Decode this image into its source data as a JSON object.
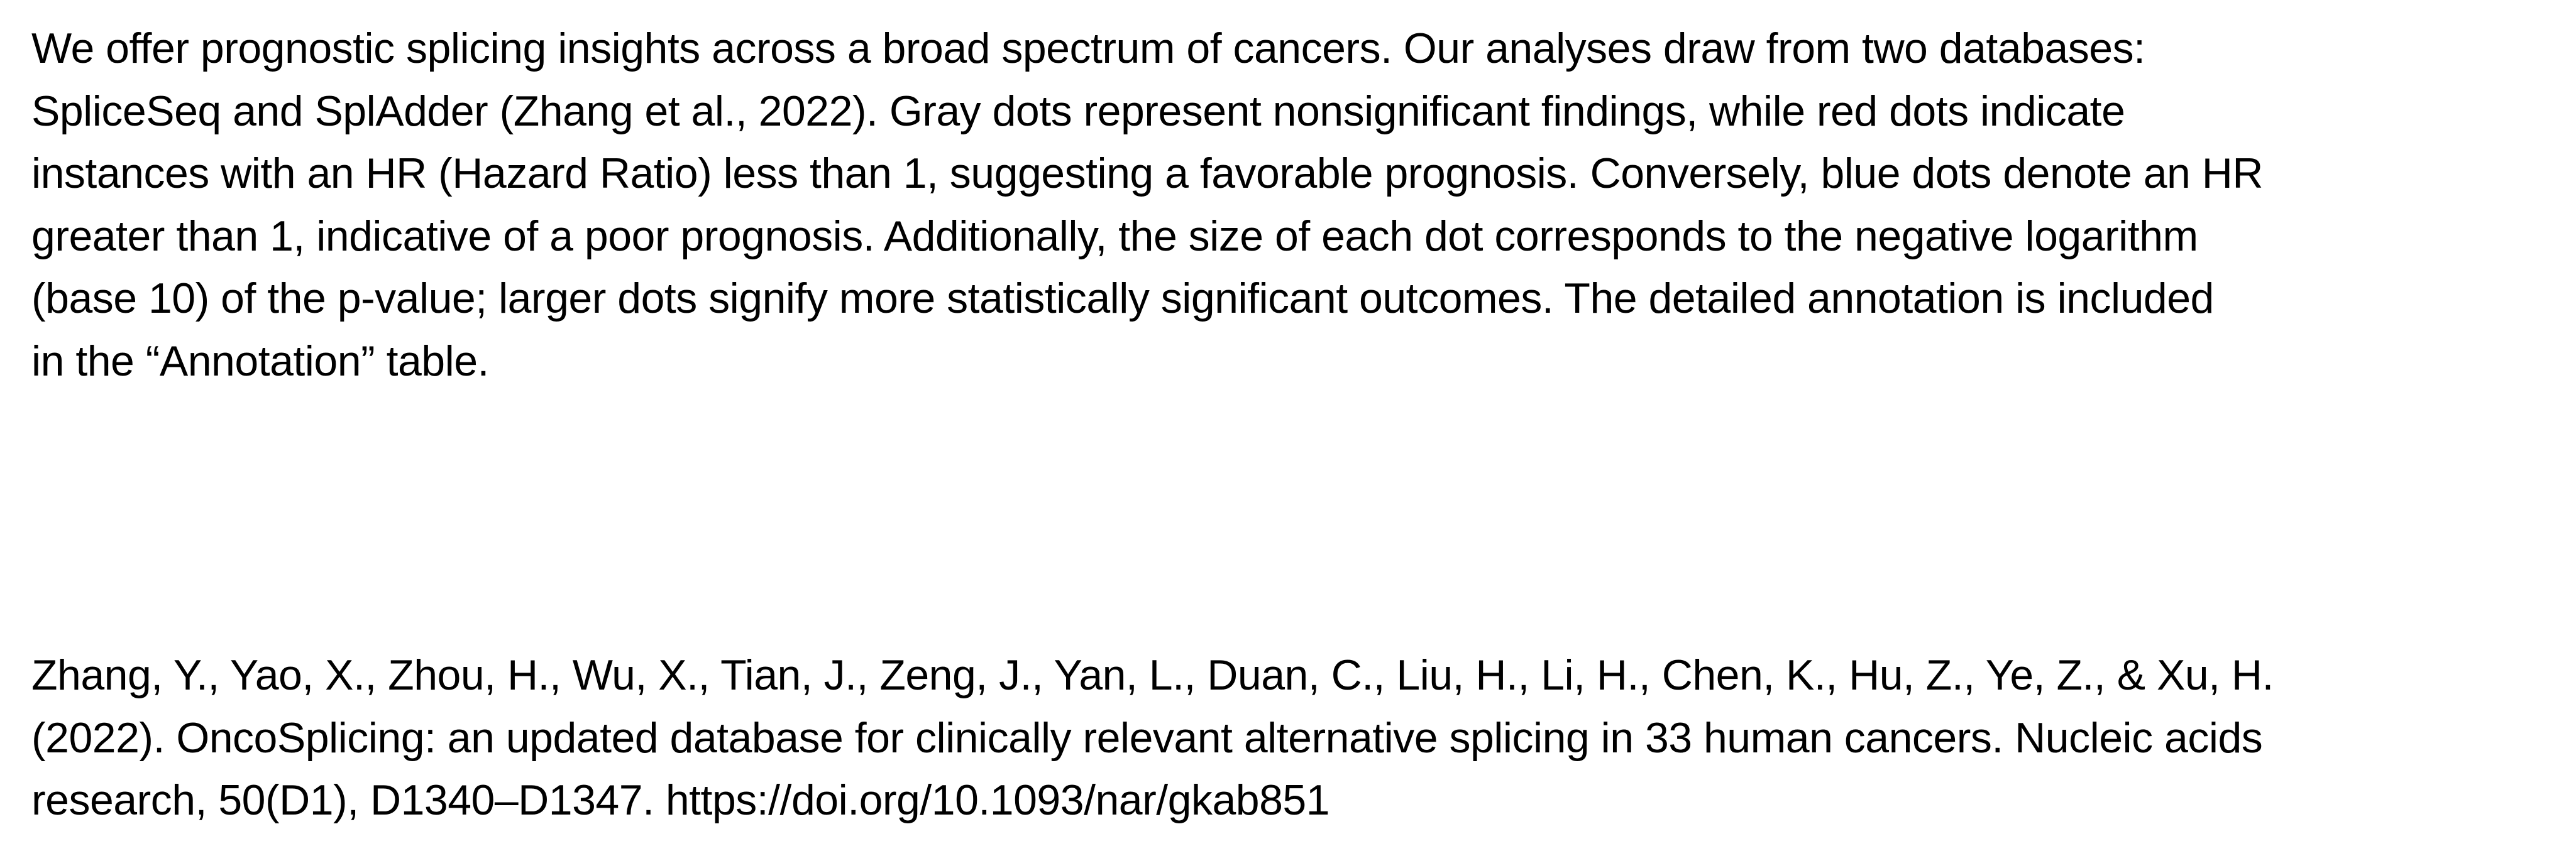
{
  "description": {
    "lines": [
      "We offer prognostic splicing insights across a broad spectrum of cancers. Our analyses draw from two databases:",
      "SpliceSeq and SplAdder (Zhang et al., 2022). Gray dots represent nonsignificant findings, while red dots indicate",
      "instances with an HR (Hazard Ratio) less than 1, suggesting a favorable prognosis. Conversely, blue dots denote an HR",
      "greater than 1, indicative of a poor prognosis. Additionally, the size of each dot corresponds to the negative logarithm",
      "(base 10) of the p-value; larger dots signify more statistically significant outcomes. The detailed annotation is included",
      "in the “Annotation” table."
    ]
  },
  "reference": {
    "lines": [
      "Zhang, Y., Yao, X., Zhou, H., Wu, X., Tian, J., Zeng, J., Yan, L., Duan, C., Liu, H., Li, H., Chen, K., Hu, Z., Ye, Z., & Xu, H.",
      "(2022). OncoSplicing: an updated database for clinically relevant alternative splicing in 33 human cancers. Nucleic acids",
      "research, 50(D1), D1340–D1347. https://doi.org/10.1093/nar/gkab851"
    ]
  }
}
